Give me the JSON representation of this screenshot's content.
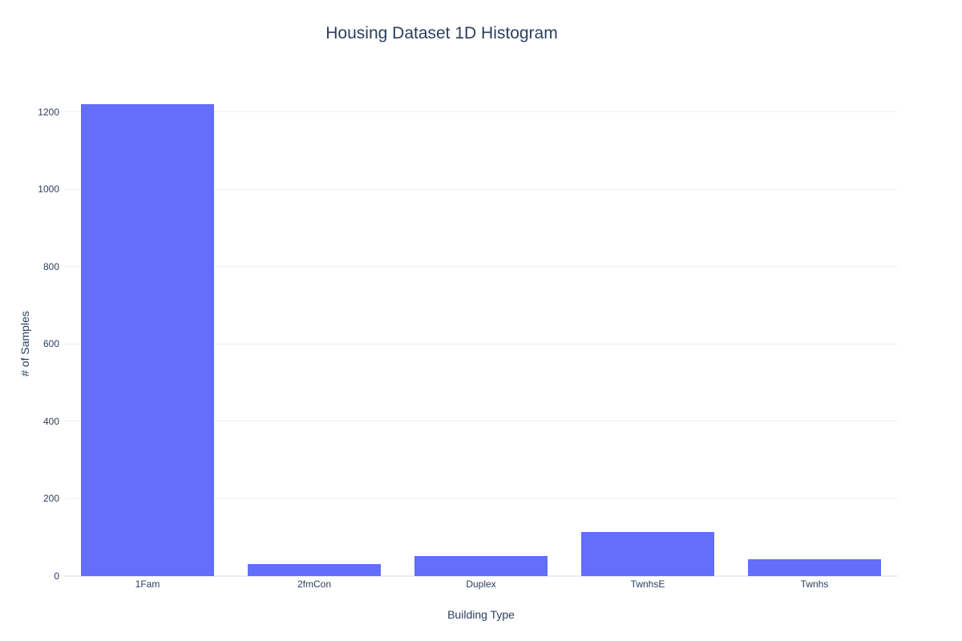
{
  "chart_data": {
    "type": "bar",
    "title": "Housing Dataset 1D Histogram",
    "xlabel": "Building Type",
    "ylabel": "# of Samples",
    "categories": [
      "1Fam",
      "2fmCon",
      "Duplex",
      "TwnhsE",
      "Twnhs"
    ],
    "values": [
      1220,
      31,
      52,
      114,
      43
    ],
    "yticks": [
      0,
      200,
      400,
      600,
      800,
      1000,
      1200
    ],
    "ylim": [
      0,
      1284
    ],
    "bar_color": "#636efa",
    "grid_color": "#ebf0f8",
    "zeroline_color": "#e8eef7",
    "text_color": "#2a3f5f",
    "background_color": "#ffffff",
    "grid": "on",
    "legend": "none",
    "bar_fraction_of_band": 0.8
  }
}
